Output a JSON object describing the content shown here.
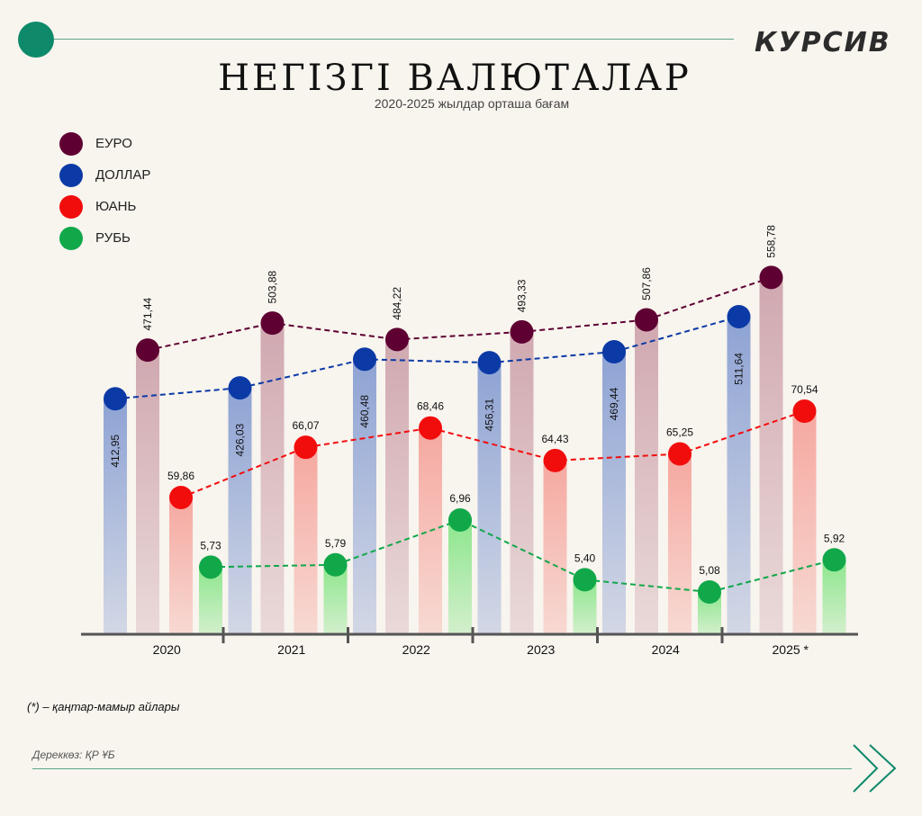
{
  "brand": {
    "logo_text": "КУРСИВ"
  },
  "header": {
    "title": "НЕГІЗГІ ВАЛЮТАЛАР",
    "subtitle": "2020-2025 жылдар орташа бағам"
  },
  "footnote": "(*) – қаңтар-мамыр айлары",
  "source": "Дереккөз: ҚР ҰБ",
  "chart_data": {
    "type": "bar",
    "title": "НЕГІЗГІ ВАЛЮТАЛАР",
    "subtitle": "2020-2025 жылдар орташа бағам",
    "categories": [
      "2020",
      "2021",
      "2022",
      "2023",
      "2024",
      "2025 *"
    ],
    "series": [
      {
        "name": "ДОЛЛАР",
        "color": "#0b3aa6",
        "bar_color": "#8ea3d4",
        "values": [
          412.95,
          426.03,
          460.48,
          456.31,
          469.44,
          511.64
        ],
        "labels": [
          "412,95",
          "426,03",
          "460,48",
          "456,31",
          "469,44",
          "511,64"
        ]
      },
      {
        "name": "ЕУРО",
        "color": "#5e0032",
        "bar_color": "#d0a8b0",
        "values": [
          471.44,
          503.88,
          484.22,
          493.33,
          507.86,
          558.78
        ],
        "labels": [
          "471,44",
          "503,88",
          "484,22",
          "493,33",
          "507,86",
          "558,78"
        ]
      },
      {
        "name": "ЮАНЬ",
        "color": "#f20d0d",
        "bar_color": "#f5a8a0",
        "values": [
          59.86,
          66.07,
          68.46,
          64.43,
          65.25,
          70.54
        ],
        "labels": [
          "59,86",
          "66,07",
          "68,46",
          "64,43",
          "65,25",
          "70,54"
        ]
      },
      {
        "name": "РУБЬ",
        "color": "#11a84a",
        "bar_color": "#8ee68e",
        "values": [
          5.73,
          5.79,
          6.96,
          5.4,
          5.08,
          5.92
        ],
        "labels": [
          "5,73",
          "5,79",
          "6,96",
          "5,40",
          "5,08",
          "5,92"
        ]
      }
    ],
    "legend_order": [
      "ЕУРО",
      "ДОЛЛАР",
      "ЮАНЬ",
      "РУБЬ"
    ],
    "legend_position": "top-left",
    "grid": false,
    "lines": "dashed"
  }
}
